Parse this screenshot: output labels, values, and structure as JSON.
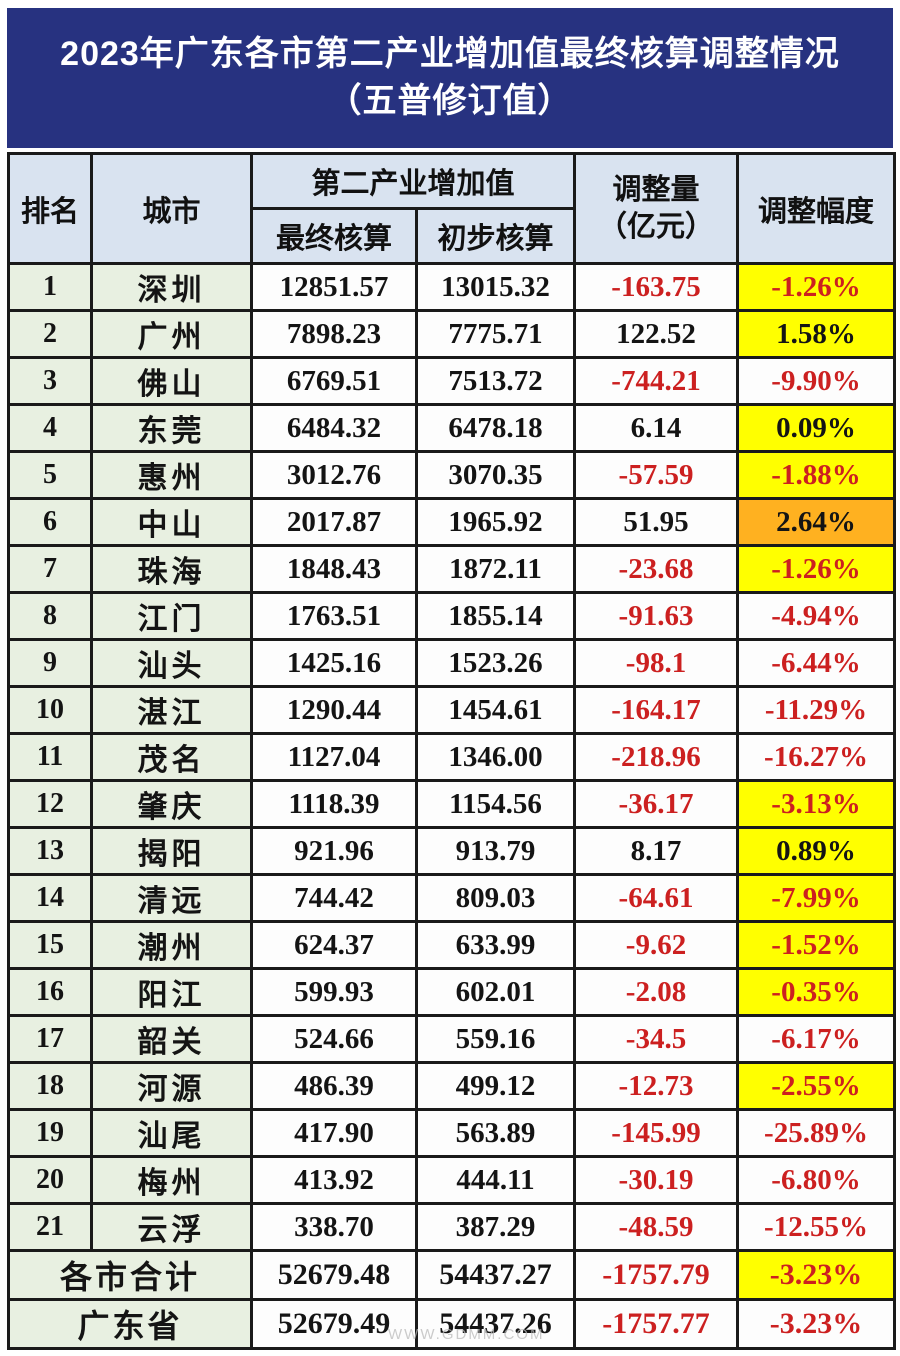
{
  "title": {
    "line1": "2023年广东各市第二产业增加值最终核算调整情况",
    "line2": "（五普修订值）"
  },
  "table": {
    "headers": {
      "rank": "排名",
      "city": "城市",
      "group": "第二产业增加值",
      "final": "最终核算",
      "preliminary": "初步核算",
      "adjustment_line1": "调整量",
      "adjustment_line2": "（亿元）",
      "adjustment_rate": "调整幅度"
    },
    "rows": [
      {
        "rank": "1",
        "city": "深圳",
        "final": "12851.57",
        "preliminary": "13015.32",
        "adjustment": "-163.75",
        "adj_color": "red",
        "rate": "-1.26%",
        "rate_color": "red",
        "rate_bg": "yellow"
      },
      {
        "rank": "2",
        "city": "广州",
        "final": "7898.23",
        "preliminary": "7775.71",
        "adjustment": "122.52",
        "adj_color": "black",
        "rate": "1.58%",
        "rate_color": "black",
        "rate_bg": "yellow"
      },
      {
        "rank": "3",
        "city": "佛山",
        "final": "6769.51",
        "preliminary": "7513.72",
        "adjustment": "-744.21",
        "adj_color": "red",
        "rate": "-9.90%",
        "rate_color": "red",
        "rate_bg": "white"
      },
      {
        "rank": "4",
        "city": "东莞",
        "final": "6484.32",
        "preliminary": "6478.18",
        "adjustment": "6.14",
        "adj_color": "black",
        "rate": "0.09%",
        "rate_color": "black",
        "rate_bg": "yellow"
      },
      {
        "rank": "5",
        "city": "惠州",
        "final": "3012.76",
        "preliminary": "3070.35",
        "adjustment": "-57.59",
        "adj_color": "red",
        "rate": "-1.88%",
        "rate_color": "red",
        "rate_bg": "yellow"
      },
      {
        "rank": "6",
        "city": "中山",
        "final": "2017.87",
        "preliminary": "1965.92",
        "adjustment": "51.95",
        "adj_color": "black",
        "rate": "2.64%",
        "rate_color": "black",
        "rate_bg": "orange"
      },
      {
        "rank": "7",
        "city": "珠海",
        "final": "1848.43",
        "preliminary": "1872.11",
        "adjustment": "-23.68",
        "adj_color": "red",
        "rate": "-1.26%",
        "rate_color": "red",
        "rate_bg": "yellow"
      },
      {
        "rank": "8",
        "city": "江门",
        "final": "1763.51",
        "preliminary": "1855.14",
        "adjustment": "-91.63",
        "adj_color": "red",
        "rate": "-4.94%",
        "rate_color": "red",
        "rate_bg": "white"
      },
      {
        "rank": "9",
        "city": "汕头",
        "final": "1425.16",
        "preliminary": "1523.26",
        "adjustment": "-98.1",
        "adj_color": "red",
        "rate": "-6.44%",
        "rate_color": "red",
        "rate_bg": "white"
      },
      {
        "rank": "10",
        "city": "湛江",
        "final": "1290.44",
        "preliminary": "1454.61",
        "adjustment": "-164.17",
        "adj_color": "red",
        "rate": "-11.29%",
        "rate_color": "red",
        "rate_bg": "white"
      },
      {
        "rank": "11",
        "city": "茂名",
        "final": "1127.04",
        "preliminary": "1346.00",
        "adjustment": "-218.96",
        "adj_color": "red",
        "rate": "-16.27%",
        "rate_color": "red",
        "rate_bg": "white"
      },
      {
        "rank": "12",
        "city": "肇庆",
        "final": "1118.39",
        "preliminary": "1154.56",
        "adjustment": "-36.17",
        "adj_color": "red",
        "rate": "-3.13%",
        "rate_color": "red",
        "rate_bg": "yellow"
      },
      {
        "rank": "13",
        "city": "揭阳",
        "final": "921.96",
        "preliminary": "913.79",
        "adjustment": "8.17",
        "adj_color": "black",
        "rate": "0.89%",
        "rate_color": "black",
        "rate_bg": "yellow"
      },
      {
        "rank": "14",
        "city": "清远",
        "final": "744.42",
        "preliminary": "809.03",
        "adjustment": "-64.61",
        "adj_color": "red",
        "rate": "-7.99%",
        "rate_color": "red",
        "rate_bg": "yellow"
      },
      {
        "rank": "15",
        "city": "潮州",
        "final": "624.37",
        "preliminary": "633.99",
        "adjustment": "-9.62",
        "adj_color": "red",
        "rate": "-1.52%",
        "rate_color": "red",
        "rate_bg": "yellow"
      },
      {
        "rank": "16",
        "city": "阳江",
        "final": "599.93",
        "preliminary": "602.01",
        "adjustment": "-2.08",
        "adj_color": "red",
        "rate": "-0.35%",
        "rate_color": "red",
        "rate_bg": "yellow"
      },
      {
        "rank": "17",
        "city": "韶关",
        "final": "524.66",
        "preliminary": "559.16",
        "adjustment": "-34.5",
        "adj_color": "red",
        "rate": "-6.17%",
        "rate_color": "red",
        "rate_bg": "white"
      },
      {
        "rank": "18",
        "city": "河源",
        "final": "486.39",
        "preliminary": "499.12",
        "adjustment": "-12.73",
        "adj_color": "red",
        "rate": "-2.55%",
        "rate_color": "red",
        "rate_bg": "yellow"
      },
      {
        "rank": "19",
        "city": "汕尾",
        "final": "417.90",
        "preliminary": "563.89",
        "adjustment": "-145.99",
        "adj_color": "red",
        "rate": "-25.89%",
        "rate_color": "red",
        "rate_bg": "white"
      },
      {
        "rank": "20",
        "city": "梅州",
        "final": "413.92",
        "preliminary": "444.11",
        "adjustment": "-30.19",
        "adj_color": "red",
        "rate": "-6.80%",
        "rate_color": "red",
        "rate_bg": "white"
      },
      {
        "rank": "21",
        "city": "云浮",
        "final": "338.70",
        "preliminary": "387.29",
        "adjustment": "-48.59",
        "adj_color": "red",
        "rate": "-12.55%",
        "rate_color": "red",
        "rate_bg": "white"
      }
    ],
    "total_rows": [
      {
        "label": "各市合计",
        "final": "52679.48",
        "preliminary": "54437.27",
        "adjustment": "-1757.79",
        "adj_color": "red",
        "rate": "-3.23%",
        "rate_color": "red",
        "rate_bg": "yellow"
      },
      {
        "label": "广东省",
        "final": "52679.49",
        "preliminary": "54437.26",
        "adjustment": "-1757.77",
        "adj_color": "red",
        "rate": "-3.23%",
        "rate_color": "red",
        "rate_bg": "white"
      }
    ]
  },
  "watermark": {
    "text": "WWW.GDMM.COM"
  },
  "colors": {
    "title_bg": "#273280",
    "header_bg": "#d9e3f0",
    "rank_city_bg": "#e8f0e1",
    "highlight_yellow": "#ffff00",
    "highlight_orange": "#ffb120",
    "negative_red": "#cc2020",
    "border": "#1a1a1a"
  },
  "chart_data": {
    "type": "table",
    "title": "2023年广东各市第二产业增加值最终核算调整情况（五普修订值）",
    "columns": [
      "排名",
      "城市",
      "第二产业增加值-最终核算",
      "第二产业增加值-初步核算",
      "调整量（亿元）",
      "调整幅度"
    ],
    "rows": [
      [
        1,
        "深圳",
        12851.57,
        13015.32,
        -163.75,
        "-1.26%"
      ],
      [
        2,
        "广州",
        7898.23,
        7775.71,
        122.52,
        "1.58%"
      ],
      [
        3,
        "佛山",
        6769.51,
        7513.72,
        -744.21,
        "-9.90%"
      ],
      [
        4,
        "东莞",
        6484.32,
        6478.18,
        6.14,
        "0.09%"
      ],
      [
        5,
        "惠州",
        3012.76,
        3070.35,
        -57.59,
        "-1.88%"
      ],
      [
        6,
        "中山",
        2017.87,
        1965.92,
        51.95,
        "2.64%"
      ],
      [
        7,
        "珠海",
        1848.43,
        1872.11,
        -23.68,
        "-1.26%"
      ],
      [
        8,
        "江门",
        1763.51,
        1855.14,
        -91.63,
        "-4.94%"
      ],
      [
        9,
        "汕头",
        1425.16,
        1523.26,
        -98.1,
        "-6.44%"
      ],
      [
        10,
        "湛江",
        1290.44,
        1454.61,
        -164.17,
        "-11.29%"
      ],
      [
        11,
        "茂名",
        1127.04,
        1346.0,
        -218.96,
        "-16.27%"
      ],
      [
        12,
        "肇庆",
        1118.39,
        1154.56,
        -36.17,
        "-3.13%"
      ],
      [
        13,
        "揭阳",
        921.96,
        913.79,
        8.17,
        "0.89%"
      ],
      [
        14,
        "清远",
        744.42,
        809.03,
        -64.61,
        "-7.99%"
      ],
      [
        15,
        "潮州",
        624.37,
        633.99,
        -9.62,
        "-1.52%"
      ],
      [
        16,
        "阳江",
        599.93,
        602.01,
        -2.08,
        "-0.35%"
      ],
      [
        17,
        "韶关",
        524.66,
        559.16,
        -34.5,
        "-6.17%"
      ],
      [
        18,
        "河源",
        486.39,
        499.12,
        -12.73,
        "-2.55%"
      ],
      [
        19,
        "汕尾",
        417.9,
        563.89,
        -145.99,
        "-25.89%"
      ],
      [
        20,
        "梅州",
        413.92,
        444.11,
        -30.19,
        "-6.80%"
      ],
      [
        21,
        "云浮",
        338.7,
        387.29,
        -48.59,
        "-12.55%"
      ],
      [
        "",
        "各市合计",
        52679.48,
        54437.27,
        -1757.79,
        "-3.23%"
      ],
      [
        "",
        "广东省",
        52679.49,
        54437.26,
        -1757.77,
        "-3.23%"
      ]
    ]
  }
}
